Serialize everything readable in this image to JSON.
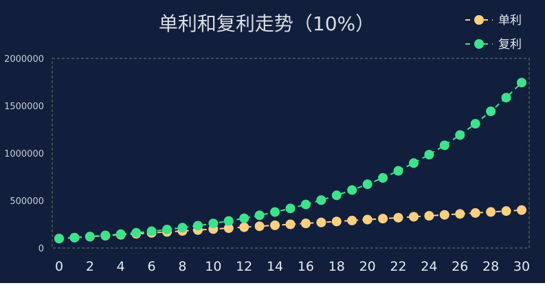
{
  "colors": {
    "background": "#111f3c",
    "plot_border": "#4d5a55",
    "simple": "#fdcf82",
    "compound": "#3fe28c"
  },
  "chart_data": {
    "type": "line",
    "title": "单利和复利走势（10%）",
    "xlabel": "",
    "ylabel": "",
    "x": [
      0,
      1,
      2,
      3,
      4,
      5,
      6,
      7,
      8,
      9,
      10,
      11,
      12,
      13,
      14,
      15,
      16,
      17,
      18,
      19,
      20,
      21,
      22,
      23,
      24,
      25,
      26,
      27,
      28,
      29,
      30
    ],
    "x_ticks": [
      "0",
      "2",
      "4",
      "6",
      "8",
      "10",
      "12",
      "14",
      "16",
      "18",
      "20",
      "22",
      "24",
      "26",
      "28",
      "30"
    ],
    "y_ticks": [
      "0",
      "500000",
      "1000000",
      "1500000",
      "2000000"
    ],
    "xlim": [
      0,
      30
    ],
    "ylim": [
      0,
      2000000
    ],
    "grid": false,
    "legend_position": "top-right",
    "series": [
      {
        "name": "单利",
        "color": "#fdcf82",
        "values": [
          100000,
          110000,
          120000,
          130000,
          140000,
          150000,
          160000,
          170000,
          180000,
          190000,
          200000,
          210000,
          220000,
          230000,
          240000,
          250000,
          260000,
          270000,
          280000,
          290000,
          300000,
          310000,
          320000,
          330000,
          340000,
          350000,
          360000,
          370000,
          380000,
          390000,
          400000
        ]
      },
      {
        "name": "复利",
        "color": "#3fe28c",
        "values": [
          100000,
          110000,
          121000,
          133100,
          146410,
          161051,
          177156,
          194872,
          214359,
          235795,
          259374,
          285312,
          313843,
          345227,
          379750,
          417725,
          459497,
          505447,
          555992,
          611591,
          672750,
          740025,
          814027,
          895430,
          984973,
          1083471,
          1191818,
          1310999,
          1442099,
          1586309,
          1744940
        ]
      }
    ]
  }
}
